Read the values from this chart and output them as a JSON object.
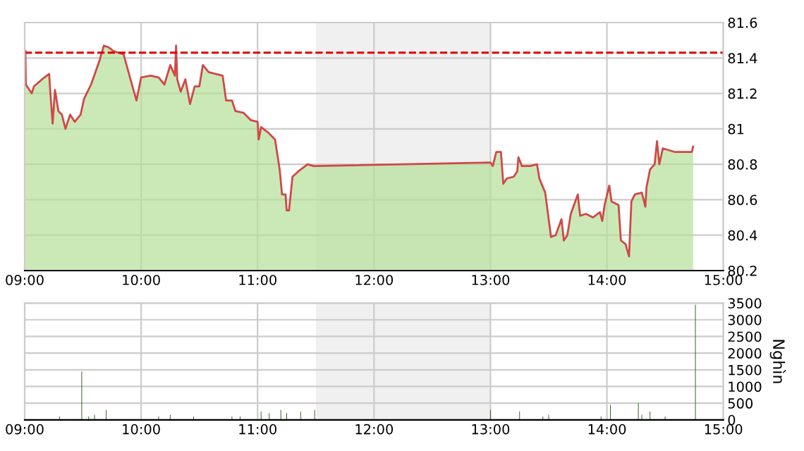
{
  "chart_data": [
    {
      "type": "area",
      "xlim": [
        9,
        15
      ],
      "ylim": [
        80.2,
        81.6
      ],
      "xticks": [
        {
          "value": 9,
          "label": "09:00"
        },
        {
          "value": 10,
          "label": "10:00"
        },
        {
          "value": 11,
          "label": "11:00"
        },
        {
          "value": 12,
          "label": "12:00"
        },
        {
          "value": 13,
          "label": "13:00"
        },
        {
          "value": 14,
          "label": "14:00"
        },
        {
          "value": 15,
          "label": "15:00"
        }
      ],
      "yticks": [
        80.2,
        80.4,
        80.6,
        80.8,
        81,
        81.2,
        81.4,
        81.6
      ],
      "grid": true,
      "ref_lines": [
        {
          "axis": "y",
          "value": 81.43,
          "label": null,
          "color": "#dd0000",
          "line_style": "dashed"
        }
      ],
      "bands": [
        {
          "axis": "x",
          "from": 11.5,
          "to": 13,
          "label": null,
          "color": "#f0f0f0"
        }
      ],
      "series": [
        {
          "color": "#b5df98",
          "x": [
            9.006,
            9.01,
            9.04,
            9.06,
            9.08,
            9.15,
            9.21,
            9.22,
            9.24,
            9.26,
            9.29,
            9.32,
            9.35,
            9.39,
            9.43,
            9.48,
            9.51,
            9.57,
            9.64,
            9.68,
            9.72,
            9.76,
            9.85,
            9.9,
            9.96,
            10.0,
            10.08,
            10.15,
            10.2,
            10.25,
            10.29,
            10.3,
            10.31,
            10.34,
            10.38,
            10.42,
            10.46,
            10.5,
            10.53,
            10.58,
            10.7,
            10.73,
            10.78,
            10.81,
            10.88,
            10.94,
            11.0,
            11.01,
            11.03,
            11.09,
            11.15,
            11.19,
            11.21,
            11.24,
            11.25,
            11.27,
            11.3,
            11.35,
            11.43,
            11.48,
            11.5,
            13.0,
            13.02,
            13.05,
            13.09,
            13.11,
            13.14,
            13.2,
            13.23,
            13.24,
            13.27,
            13.34,
            13.4,
            13.42,
            13.47,
            13.52,
            13.56,
            13.61,
            13.63,
            13.66,
            13.69,
            13.75,
            13.77,
            13.82,
            13.88,
            13.94,
            13.96,
            13.98,
            14.02,
            14.04,
            14.1,
            14.12,
            14.16,
            14.19,
            14.21,
            14.24,
            14.3,
            14.33,
            14.34,
            14.37,
            14.41,
            14.43,
            14.45,
            14.48,
            14.58,
            14.73,
            14.74
          ],
          "values": [
            81.44,
            81.25,
            81.22,
            81.2,
            81.24,
            81.28,
            81.31,
            81.21,
            81.03,
            81.22,
            81.1,
            81.08,
            81.0,
            81.08,
            81.04,
            81.08,
            81.17,
            81.25,
            81.38,
            81.47,
            81.46,
            81.44,
            81.42,
            81.3,
            81.16,
            81.29,
            81.3,
            81.29,
            81.25,
            81.36,
            81.3,
            81.47,
            81.28,
            81.21,
            81.28,
            81.14,
            81.24,
            81.24,
            81.36,
            81.32,
            81.3,
            81.16,
            81.16,
            81.1,
            81.09,
            81.05,
            81.04,
            80.94,
            81.01,
            80.98,
            80.94,
            80.77,
            80.63,
            80.63,
            80.54,
            80.54,
            80.73,
            80.76,
            80.8,
            80.79,
            80.79,
            80.81,
            80.79,
            80.87,
            80.87,
            80.69,
            80.72,
            80.73,
            80.76,
            80.84,
            80.79,
            80.79,
            80.8,
            80.72,
            80.64,
            80.39,
            80.4,
            80.49,
            80.37,
            80.4,
            80.52,
            80.63,
            80.51,
            80.52,
            80.5,
            80.53,
            80.48,
            80.57,
            80.68,
            80.59,
            80.57,
            80.37,
            80.35,
            80.28,
            80.59,
            80.63,
            80.64,
            80.56,
            80.67,
            80.77,
            80.8,
            80.93,
            80.8,
            80.89,
            80.87,
            80.87,
            80.9
          ]
        },
        {
          "type": "line",
          "color": "#d04848",
          "x": [
            9.006,
            9.01,
            9.04,
            9.06,
            9.08,
            9.15,
            9.21,
            9.22,
            9.24,
            9.26,
            9.29,
            9.32,
            9.35,
            9.39,
            9.43,
            9.48,
            9.51,
            9.57,
            9.64,
            9.68,
            9.72,
            9.76,
            9.85,
            9.9,
            9.96,
            10.0,
            10.08,
            10.15,
            10.2,
            10.25,
            10.29,
            10.3,
            10.31,
            10.34,
            10.38,
            10.42,
            10.46,
            10.5,
            10.53,
            10.58,
            10.7,
            10.73,
            10.78,
            10.81,
            10.88,
            10.94,
            11.0,
            11.01,
            11.03,
            11.09,
            11.15,
            11.19,
            11.21,
            11.24,
            11.25,
            11.27,
            11.3,
            11.35,
            11.43,
            11.48,
            11.5,
            13.0,
            13.02,
            13.05,
            13.09,
            13.11,
            13.14,
            13.2,
            13.23,
            13.24,
            13.27,
            13.34,
            13.4,
            13.42,
            13.47,
            13.52,
            13.56,
            13.61,
            13.63,
            13.66,
            13.69,
            13.75,
            13.77,
            13.82,
            13.88,
            13.94,
            13.96,
            13.98,
            14.02,
            14.04,
            14.1,
            14.12,
            14.16,
            14.19,
            14.21,
            14.24,
            14.3,
            14.33,
            14.34,
            14.37,
            14.41,
            14.43,
            14.45,
            14.48,
            14.58,
            14.73,
            14.74
          ],
          "values": [
            81.44,
            81.25,
            81.22,
            81.2,
            81.24,
            81.28,
            81.31,
            81.21,
            81.03,
            81.22,
            81.1,
            81.08,
            81.0,
            81.08,
            81.04,
            81.08,
            81.17,
            81.25,
            81.38,
            81.47,
            81.46,
            81.44,
            81.42,
            81.3,
            81.16,
            81.29,
            81.3,
            81.29,
            81.25,
            81.36,
            81.3,
            81.47,
            81.28,
            81.21,
            81.28,
            81.14,
            81.24,
            81.24,
            81.36,
            81.32,
            81.3,
            81.16,
            81.16,
            81.1,
            81.09,
            81.05,
            81.04,
            80.94,
            81.01,
            80.98,
            80.94,
            80.77,
            80.63,
            80.63,
            80.54,
            80.54,
            80.73,
            80.76,
            80.8,
            80.79,
            80.79,
            80.81,
            80.79,
            80.87,
            80.87,
            80.69,
            80.72,
            80.73,
            80.76,
            80.84,
            80.79,
            80.79,
            80.8,
            80.72,
            80.64,
            80.39,
            80.4,
            80.49,
            80.37,
            80.4,
            80.52,
            80.63,
            80.51,
            80.52,
            80.5,
            80.53,
            80.48,
            80.57,
            80.68,
            80.59,
            80.57,
            80.37,
            80.35,
            80.28,
            80.59,
            80.63,
            80.64,
            80.56,
            80.67,
            80.77,
            80.8,
            80.93,
            80.8,
            80.89,
            80.87,
            80.87,
            80.9
          ]
        }
      ]
    },
    {
      "type": "bar",
      "xlim": [
        9,
        15
      ],
      "ylim": [
        0,
        3500
      ],
      "ylabel": "Nghìn",
      "xticks": [
        {
          "value": 9,
          "label": "09:00"
        },
        {
          "value": 10,
          "label": "10:00"
        },
        {
          "value": 11,
          "label": "11:00"
        },
        {
          "value": 12,
          "label": "12:00"
        },
        {
          "value": 13,
          "label": "13:00"
        },
        {
          "value": 14,
          "label": "14:00"
        },
        {
          "value": 15,
          "label": "15:00"
        }
      ],
      "yticks": [
        0,
        500,
        1000,
        1500,
        2000,
        2500,
        3000,
        3500
      ],
      "grid": true,
      "bands": [
        {
          "axis": "x",
          "from": 11.5,
          "to": 13,
          "label": null,
          "color": "#f0f0f0"
        }
      ],
      "series": [
        {
          "color": "#336622",
          "x": [
            9.3,
            9.49,
            9.55,
            9.6,
            9.7,
            10.15,
            10.25,
            10.45,
            10.78,
            10.85,
            11.03,
            11.1,
            11.2,
            11.25,
            11.37,
            11.49,
            13.0,
            13.25,
            13.45,
            13.5,
            13.95,
            14.03,
            14.27,
            14.3,
            14.37,
            14.5,
            14.76
          ],
          "values": [
            100,
            1450,
            100,
            150,
            300,
            100,
            150,
            100,
            100,
            100,
            250,
            200,
            300,
            200,
            250,
            300,
            300,
            250,
            100,
            150,
            100,
            450,
            500,
            150,
            250,
            100,
            3450
          ]
        }
      ]
    }
  ]
}
